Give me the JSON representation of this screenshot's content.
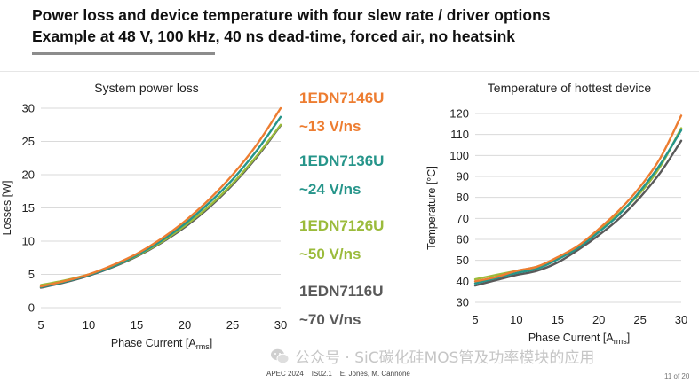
{
  "slide": {
    "title_line1": "Power loss and device temperature with four slew rate / driver options",
    "title_line2": "Example at 48 V, 100 kHz, 40 ns dead-time, forced air, no heatsink",
    "footer": "APEC 2024    IS02.1    E. Jones, M. Cannone",
    "page": "11 of 20",
    "watermark": "公众号 · SiC碳化硅MOS管及功率模块的应用",
    "watermark_icon": "wechat-icon"
  },
  "legend": [
    {
      "name": "1EDN7146U",
      "rate": "~13 V/ns",
      "color": "#ed7d31"
    },
    {
      "name": "1EDN7136U",
      "rate": "~24 V/ns",
      "color": "#26958a"
    },
    {
      "name": "1EDN7126U",
      "rate": "~50 V/ns",
      "color": "#9bbb3b"
    },
    {
      "name": "1EDN7116U",
      "rate": "~70 V/ns",
      "color": "#595959"
    }
  ],
  "chart_data": [
    {
      "type": "line",
      "title": "System power loss",
      "xlabel": "Phase Current [A",
      "xlabel_sub": "rms",
      "xlabel_end": "]",
      "ylabel": "Losses [W]",
      "xlim": [
        5,
        30
      ],
      "ylim": [
        0,
        30
      ],
      "xticks": [
        5,
        10,
        15,
        20,
        25,
        30
      ],
      "yticks": [
        0,
        5,
        10,
        15,
        20,
        25,
        30
      ],
      "grid": "horizontal",
      "x": [
        5,
        7.5,
        10,
        12.5,
        15,
        17.5,
        20,
        22.5,
        25,
        27.5,
        30
      ],
      "series": [
        {
          "name": "1EDN7146U",
          "color": "#ed7d31",
          "values": [
            3.2,
            4.0,
            5.0,
            6.4,
            8.1,
            10.3,
            13.0,
            16.2,
            20.0,
            24.5,
            30.0
          ]
        },
        {
          "name": "1EDN7136U",
          "color": "#26958a",
          "values": [
            3.1,
            3.9,
            4.9,
            6.2,
            7.9,
            10.0,
            12.6,
            15.7,
            19.3,
            23.6,
            28.7
          ]
        },
        {
          "name": "1EDN7126U",
          "color": "#9bbb3b",
          "values": [
            3.4,
            4.1,
            5.0,
            6.2,
            7.8,
            9.8,
            12.3,
            15.2,
            18.7,
            22.8,
            27.5
          ]
        },
        {
          "name": "1EDN7116U",
          "color": "#595959",
          "values": [
            3.0,
            3.8,
            4.8,
            6.1,
            7.7,
            9.7,
            12.1,
            15.0,
            18.5,
            22.6,
            27.4
          ]
        }
      ]
    },
    {
      "type": "line",
      "title": "Temperature of hottest device",
      "xlabel": "Phase Current [A",
      "xlabel_sub": "rms",
      "xlabel_end": "]",
      "ylabel": "Temperature [°C]",
      "xlim": [
        5,
        30
      ],
      "ylim": [
        30,
        120
      ],
      "xticks": [
        5,
        10,
        15,
        20,
        25,
        30
      ],
      "yticks": [
        30,
        40,
        50,
        60,
        70,
        80,
        90,
        100,
        110,
        120
      ],
      "grid": "horizontal",
      "x": [
        5,
        7.5,
        10,
        12.5,
        15,
        17.5,
        20,
        22.5,
        25,
        27.5,
        30
      ],
      "series": [
        {
          "name": "1EDN7146U",
          "color": "#ed7d31",
          "values": [
            40.0,
            42.0,
            45.0,
            47.0,
            51.5,
            57.0,
            65.0,
            74.0,
            85.0,
            99.0,
            119.0
          ]
        },
        {
          "name": "1EDN7136U",
          "color": "#26958a",
          "values": [
            39.0,
            41.5,
            44.0,
            46.0,
            50.5,
            56.0,
            63.5,
            72.0,
            83.0,
            96.0,
            112.0
          ]
        },
        {
          "name": "1EDN7126U",
          "color": "#9bbb3b",
          "values": [
            41.0,
            43.0,
            45.0,
            47.0,
            51.0,
            56.5,
            64.0,
            72.5,
            82.0,
            95.0,
            113.0
          ]
        },
        {
          "name": "1EDN7116U",
          "color": "#595959",
          "values": [
            38.0,
            40.5,
            43.0,
            45.0,
            49.0,
            55.0,
            62.0,
            70.0,
            80.0,
            92.0,
            107.0
          ]
        }
      ]
    }
  ]
}
